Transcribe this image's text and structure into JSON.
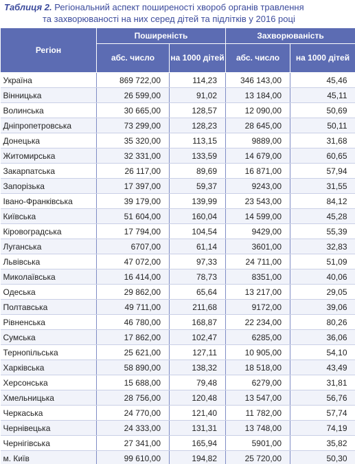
{
  "caption": {
    "label": "Таблиця 2.",
    "lines": [
      "Регіональний аспект поширеності хвороб органів травлення",
      "та захворюваності на них серед дітей та підлітків у 2016 році"
    ]
  },
  "table": {
    "region_header": "Регіон",
    "groups": [
      "Поширеність",
      "Захворюваність"
    ],
    "subheaders": [
      "абс. число",
      "на 1000 дітей",
      "абс. число",
      "на 1000 дітей"
    ],
    "rows": [
      [
        "Україна",
        "869 722,00",
        "114,23",
        "346 143,00",
        "45,46"
      ],
      [
        "Вінницька",
        "26 599,00",
        "91,02",
        "13 184,00",
        "45,11"
      ],
      [
        "Волинська",
        "30 665,00",
        "128,57",
        "12 090,00",
        "50,69"
      ],
      [
        "Дніпропетровська",
        "73 299,00",
        "128,23",
        "28 645,00",
        "50,11"
      ],
      [
        "Донецька",
        "35 320,00",
        "113,15",
        "9889,00",
        "31,68"
      ],
      [
        "Житомирська",
        "32 331,00",
        "133,59",
        "14 679,00",
        "60,65"
      ],
      [
        "Закарпатська",
        "26 117,00",
        "89,69",
        "16 871,00",
        "57,94"
      ],
      [
        "Запорізька",
        "17 397,00",
        "59,37",
        "9243,00",
        "31,55"
      ],
      [
        "Івано-Франківська",
        "39 179,00",
        "139,99",
        "23 543,00",
        "84,12"
      ],
      [
        "Київська",
        "51 604,00",
        "160,04",
        "14 599,00",
        "45,28"
      ],
      [
        "Кіровоградська",
        "17 794,00",
        "104,54",
        "9429,00",
        "55,39"
      ],
      [
        "Луганська",
        "6707,00",
        "61,14",
        "3601,00",
        "32,83"
      ],
      [
        "Львівська",
        "47 072,00",
        "97,33",
        "24 711,00",
        "51,09"
      ],
      [
        "Миколаївська",
        "16 414,00",
        "78,73",
        "8351,00",
        "40,06"
      ],
      [
        "Одеська",
        "29 862,00",
        "65,64",
        "13 217,00",
        "29,05"
      ],
      [
        "Полтавська",
        "49 711,00",
        "211,68",
        "9172,00",
        "39,06"
      ],
      [
        "Рівненська",
        "46 780,00",
        "168,87",
        "22 234,00",
        "80,26"
      ],
      [
        "Сумська",
        "17 862,00",
        "102,47",
        "6285,00",
        "36,06"
      ],
      [
        "Тернопільська",
        "25 621,00",
        "127,11",
        "10 905,00",
        "54,10"
      ],
      [
        "Харківська",
        "58 890,00",
        "138,32",
        "18 518,00",
        "43,49"
      ],
      [
        "Херсонська",
        "15 688,00",
        "79,48",
        "6279,00",
        "31,81"
      ],
      [
        "Хмельницька",
        "28 756,00",
        "120,48",
        "13 547,00",
        "56,76"
      ],
      [
        "Черкаська",
        "24 770,00",
        "121,40",
        "11 782,00",
        "57,74"
      ],
      [
        "Чернівецька",
        "24 333,00",
        "131,31",
        "13 748,00",
        "74,19"
      ],
      [
        "Чернігівська",
        "27 341,00",
        "165,94",
        "5901,00",
        "35,82"
      ],
      [
        "м. Київ",
        "99 610,00",
        "194,82",
        "25 720,00",
        "50,30"
      ]
    ]
  }
}
